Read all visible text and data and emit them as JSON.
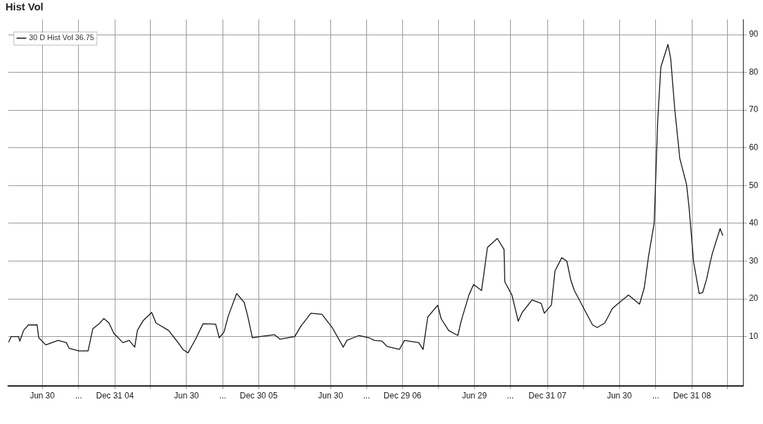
{
  "chart_data": {
    "type": "line",
    "title": "Hist Vol",
    "series": [
      {
        "name": "30 D Hist Vol 36.75",
        "color": "#111111",
        "x": [
          "2004-04-06",
          "2004-04-12",
          "2004-05-01",
          "2004-05-04",
          "2004-05-14",
          "2004-05-26",
          "2004-06-17",
          "2004-06-21",
          "2004-07-09",
          "2004-08-09",
          "2004-08-30",
          "2004-09-06",
          "2004-10-01",
          "2004-10-24",
          "2004-11-05",
          "2004-11-21",
          "2004-12-03",
          "2004-12-16",
          "2004-12-28",
          "2005-01-20",
          "2005-02-05",
          "2005-02-19",
          "2005-02-26",
          "2005-03-13",
          "2005-04-03",
          "2005-04-14",
          "2005-05-16",
          "2005-06-09",
          "2005-06-21",
          "2005-07-04",
          "2005-07-23",
          "2005-08-11",
          "2005-09-12",
          "2005-09-21",
          "2005-10-03",
          "2005-10-14",
          "2005-11-04",
          "2005-11-23",
          "2005-12-02",
          "2005-12-14",
          "2006-01-02",
          "2006-02-08",
          "2006-02-22",
          "2006-03-31",
          "2006-04-16",
          "2006-05-11",
          "2006-06-08",
          "2006-07-04",
          "2006-08-01",
          "2006-08-10",
          "2006-09-10",
          "2006-10-05",
          "2006-10-19",
          "2006-11-07",
          "2006-11-20",
          "2006-12-21",
          "2007-01-03",
          "2007-02-08",
          "2007-02-19",
          "2007-03-03",
          "2007-03-28",
          "2007-04-06",
          "2007-04-25",
          "2007-05-18",
          "2007-05-27",
          "2007-06-15",
          "2007-06-27",
          "2007-07-17",
          "2007-07-22",
          "2007-08-01",
          "2007-08-26",
          "2007-09-12",
          "2007-09-14",
          "2007-10-02",
          "2007-10-18",
          "2007-10-28",
          "2007-11-22",
          "2007-12-15",
          "2007-12-23",
          "2008-01-10",
          "2008-01-19",
          "2008-02-05",
          "2008-02-18",
          "2008-02-28",
          "2008-03-08",
          "2008-04-23",
          "2008-05-05",
          "2008-05-24",
          "2008-06-12",
          "2008-06-25",
          "2008-07-23",
          "2008-08-20",
          "2008-09-01",
          "2008-09-12",
          "2008-09-26",
          "2008-10-03",
          "2008-10-05",
          "2008-10-13",
          "2008-10-31",
          "2008-11-07",
          "2008-11-17",
          "2008-11-30",
          "2008-12-17",
          "2008-12-23",
          "2008-12-30",
          "2009-01-04",
          "2009-01-18",
          "2009-01-27",
          "2009-02-06",
          "2009-02-15",
          "2009-02-20",
          "2009-03-12",
          "2009-03-19"
        ],
        "values": [
          8.5,
          10.0,
          10.0,
          8.8,
          11.7,
          13.1,
          13.1,
          9.7,
          7.8,
          9.0,
          8.4,
          6.9,
          6.2,
          6.2,
          12.1,
          13.4,
          14.8,
          13.6,
          10.9,
          8.4,
          9.0,
          7.2,
          11.7,
          14.3,
          16.4,
          13.6,
          11.6,
          8.4,
          6.6,
          5.7,
          9.3,
          13.4,
          13.3,
          9.7,
          11.2,
          15.5,
          21.4,
          19.1,
          15.5,
          9.7,
          10.0,
          10.5,
          9.3,
          10.0,
          12.8,
          16.2,
          15.9,
          12.4,
          7.2,
          9.0,
          10.3,
          9.7,
          9.0,
          8.8,
          7.4,
          6.6,
          9.0,
          8.4,
          6.6,
          15.2,
          18.3,
          14.7,
          11.6,
          10.3,
          14.3,
          21.0,
          23.8,
          22.2,
          25.9,
          33.6,
          36.0,
          33.1,
          24.5,
          21.0,
          14.1,
          16.4,
          19.7,
          18.8,
          16.2,
          18.4,
          27.4,
          30.9,
          30.0,
          25.0,
          22.2,
          13.1,
          12.4,
          13.6,
          17.4,
          18.6,
          21.0,
          18.6,
          22.9,
          31.4,
          40.0,
          60.7,
          67.1,
          81.4,
          87.4,
          83.6,
          70.5,
          57.2,
          50.3,
          44.7,
          36.0,
          29.7,
          21.4,
          21.7,
          25.3,
          29.7,
          31.9,
          38.6,
          36.75
        ]
      }
    ],
    "xlim": [
      "2004-04-05",
      "2009-05-10"
    ],
    "xticks": [
      {
        "value": "2004-06-30",
        "label": "Jun 30"
      },
      {
        "value": "2004-09-30",
        "label": "..."
      },
      {
        "value": "2004-12-31",
        "label": "Dec 31 04"
      },
      {
        "value": "2005-03-31",
        "label": null
      },
      {
        "value": "2005-06-30",
        "label": "Jun 30"
      },
      {
        "value": "2005-09-30",
        "label": "..."
      },
      {
        "value": "2005-12-30",
        "label": "Dec 30 05"
      },
      {
        "value": "2006-03-31",
        "label": null
      },
      {
        "value": "2006-06-30",
        "label": "Jun 30"
      },
      {
        "value": "2006-09-29",
        "label": "..."
      },
      {
        "value": "2006-12-29",
        "label": "Dec 29 06"
      },
      {
        "value": "2007-03-30",
        "label": null
      },
      {
        "value": "2007-06-29",
        "label": "Jun 29"
      },
      {
        "value": "2007-09-28",
        "label": "..."
      },
      {
        "value": "2007-12-31",
        "label": "Dec 31 07"
      },
      {
        "value": "2008-03-31",
        "label": null
      },
      {
        "value": "2008-06-30",
        "label": "Jun 30"
      },
      {
        "value": "2008-09-30",
        "label": "..."
      },
      {
        "value": "2008-12-31",
        "label": "Dec 31 08"
      },
      {
        "value": "2009-03-31",
        "label": null
      }
    ],
    "ylim": [
      -3,
      94
    ],
    "yticks": [
      10,
      20,
      30,
      40,
      50,
      60,
      70,
      80,
      90
    ],
    "grid": true,
    "legend": "top left",
    "marker": "none",
    "line_style": "solid"
  }
}
